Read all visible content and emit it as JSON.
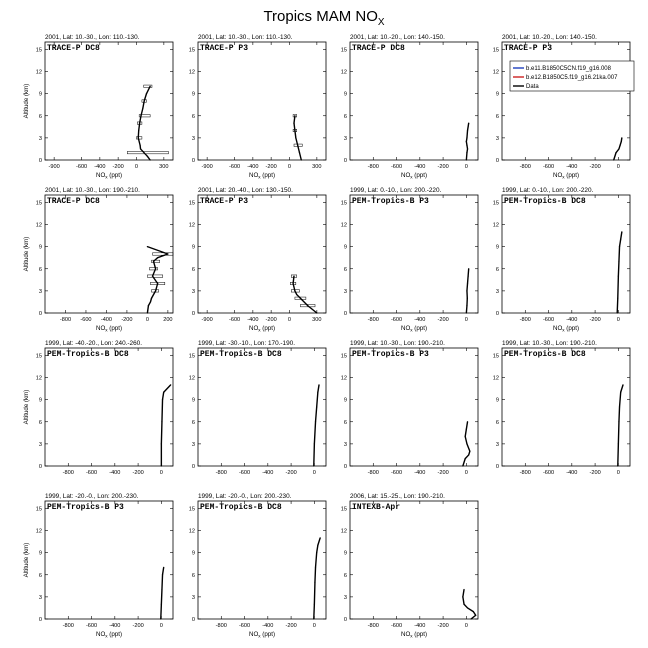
{
  "title": {
    "main": "Tropics MAM NO",
    "sub": "X"
  },
  "legend": [
    {
      "label": "b.e11.B1850C5CN.f19_g16.008",
      "color": "#1f3fbf"
    },
    {
      "label": "b.e12.B1850C5.f19_g16.21ka.007",
      "color": "#cc2222"
    },
    {
      "label": "Data",
      "color": "#000000"
    }
  ],
  "colors": {
    "data_line": "#000000",
    "background": "#ffffff"
  },
  "chart_data": [
    {
      "type": "line",
      "subtitle": "2001, Lat: 10.-30., Lon: 110.-130.",
      "campaign": "TRACE-P DC8",
      "xlabel": "NO_x (ppt)",
      "ylabel": "Altitude (km)",
      "xlim": [
        -1000,
        400
      ],
      "ylim": [
        0,
        16
      ],
      "xticks": [
        -900,
        -600,
        -400,
        -200,
        0,
        300
      ],
      "yticks": [
        0,
        3,
        6,
        9,
        12,
        15
      ],
      "series": [
        {
          "name": "Data",
          "x": [
            150,
            110,
            85,
            70,
            50,
            35,
            25,
            20,
            40,
            45,
            120,
            150
          ],
          "y": [
            10,
            9,
            8,
            7,
            6,
            5,
            4,
            3,
            2,
            1.5,
            0.5,
            0
          ]
        }
      ],
      "error_bars": [
        {
          "y": 10,
          "lo": 80,
          "hi": 170
        },
        {
          "y": 8,
          "lo": 60,
          "hi": 110
        },
        {
          "y": 6,
          "lo": 30,
          "hi": 150
        },
        {
          "y": 5,
          "lo": 10,
          "hi": 60
        },
        {
          "y": 3,
          "lo": 0,
          "hi": 60
        },
        {
          "y": 1,
          "lo": -100,
          "hi": 350
        }
      ]
    },
    {
      "type": "line",
      "subtitle": "2001, Lat: 10.-30., Lon: 110.-130.",
      "campaign": "TRACE-P P3",
      "xlabel": "NO_x (ppt)",
      "ylabel": "",
      "xlim": [
        -1000,
        400
      ],
      "ylim": [
        0,
        16
      ],
      "xticks": [
        -900,
        -600,
        -400,
        -200,
        0,
        300
      ],
      "yticks": [
        0,
        3,
        6,
        9,
        12,
        15
      ],
      "series": [
        {
          "name": "Data",
          "x": [
            60,
            50,
            60,
            70,
            90,
            110,
            130
          ],
          "y": [
            6,
            5,
            4,
            3,
            2,
            1,
            0
          ]
        }
      ],
      "error_bars": [
        {
          "y": 6,
          "lo": 40,
          "hi": 80
        },
        {
          "y": 4,
          "lo": 40,
          "hi": 80
        },
        {
          "y": 2,
          "lo": 50,
          "hi": 140
        }
      ]
    },
    {
      "type": "line",
      "subtitle": "2001, Lat: 10.-20., Lon: 140.-150.",
      "campaign": "TRACE-P DC8",
      "xlabel": "NO_x (ppt)",
      "ylabel": "",
      "xlim": [
        -1000,
        100
      ],
      "ylim": [
        0,
        16
      ],
      "xticks": [
        -800,
        -600,
        -400,
        -200,
        0
      ],
      "yticks": [
        0,
        3,
        6,
        9,
        12,
        15
      ],
      "series": [
        {
          "name": "Data",
          "x": [
            20,
            15,
            10,
            5,
            0,
            5,
            10,
            5,
            0
          ],
          "y": [
            5,
            4.5,
            4,
            3,
            2.5,
            2,
            1.5,
            1,
            0
          ]
        }
      ],
      "error_bars": []
    },
    {
      "type": "line",
      "subtitle": "2001, Lat: 10.-20., Lon: 140.-150.",
      "campaign": "TRACE-P P3",
      "xlabel": "NO_x (ppt)",
      "ylabel": "",
      "xlim": [
        -1000,
        100
      ],
      "ylim": [
        0,
        16
      ],
      "xticks": [
        -800,
        -600,
        -400,
        -200,
        0
      ],
      "yticks": [
        0,
        3,
        6,
        9,
        12,
        15
      ],
      "series": [
        {
          "name": "Data",
          "x": [
            30,
            25,
            15,
            5,
            -20,
            -40
          ],
          "y": [
            3,
            2.5,
            2,
            1.5,
            1,
            0
          ]
        }
      ],
      "error_bars": []
    },
    {
      "type": "line",
      "subtitle": "2001, Lat: 10.-30., Lon: 190.-210.",
      "campaign": "TRACE-P DC8",
      "xlabel": "NO_x (ppt)",
      "ylabel": "Altitude (km)",
      "xlim": [
        -1000,
        250
      ],
      "ylim": [
        0,
        16
      ],
      "xticks": [
        -800,
        -600,
        -400,
        -200,
        0,
        200
      ],
      "yticks": [
        0,
        3,
        6,
        9,
        12,
        15
      ],
      "series": [
        {
          "name": "Data",
          "x": [
            0,
            200,
            100,
            60,
            80,
            50,
            100,
            80,
            40,
            30,
            10,
            0
          ],
          "y": [
            9,
            8,
            7.5,
            7,
            6,
            5,
            4,
            3,
            2,
            1.5,
            1,
            0
          ]
        }
      ],
      "error_bars": [
        {
          "y": 8,
          "lo": 50,
          "hi": 250
        },
        {
          "y": 7,
          "lo": 40,
          "hi": 120
        },
        {
          "y": 6,
          "lo": 20,
          "hi": 100
        },
        {
          "y": 5,
          "lo": 0,
          "hi": 150
        },
        {
          "y": 4,
          "lo": 30,
          "hi": 170
        },
        {
          "y": 3,
          "lo": 40,
          "hi": 110
        }
      ]
    },
    {
      "type": "line",
      "subtitle": "2001, Lat: 20.-40., Lon: 130.-150.",
      "campaign": "TRACE-P P3",
      "xlabel": "NO_x (ppt)",
      "ylabel": "",
      "xlim": [
        -1000,
        400
      ],
      "ylim": [
        0,
        16
      ],
      "xticks": [
        -900,
        -600,
        -400,
        -200,
        0,
        300
      ],
      "yticks": [
        0,
        3,
        6,
        9,
        12,
        15
      ],
      "series": [
        {
          "name": "Data",
          "x": [
            50,
            40,
            60,
            80,
            120,
            200,
            300
          ],
          "y": [
            5,
            4,
            3,
            2.5,
            2,
            1,
            0
          ]
        }
      ],
      "error_bars": [
        {
          "y": 5,
          "lo": 20,
          "hi": 80
        },
        {
          "y": 4,
          "lo": 10,
          "hi": 70
        },
        {
          "y": 3,
          "lo": 20,
          "hi": 110
        },
        {
          "y": 2,
          "lo": 60,
          "hi": 180
        },
        {
          "y": 1,
          "lo": 120,
          "hi": 280
        }
      ]
    },
    {
      "type": "line",
      "subtitle": "1999, Lat: 0.-10., Lon: 200.-220.",
      "campaign": "PEM-Tropics-B P3",
      "xlabel": "NO_x (ppt)",
      "ylabel": "",
      "xlim": [
        -1000,
        100
      ],
      "ylim": [
        0,
        16
      ],
      "xticks": [
        -800,
        -600,
        -400,
        -200,
        0
      ],
      "yticks": [
        0,
        3,
        6,
        9,
        12,
        15
      ],
      "series": [
        {
          "name": "Data",
          "x": [
            20,
            15,
            10,
            5,
            8,
            5,
            0
          ],
          "y": [
            6,
            5,
            4,
            3,
            2,
            1,
            0
          ]
        }
      ],
      "error_bars": []
    },
    {
      "type": "line",
      "subtitle": "1999, Lat: 0.-10., Lon: 200.-220.",
      "campaign": "PEM-Tropics-B DC8",
      "xlabel": "NO_x (ppt)",
      "ylabel": "",
      "xlim": [
        -1000,
        100
      ],
      "ylim": [
        0,
        16
      ],
      "xticks": [
        -800,
        -600,
        -400,
        -200,
        0
      ],
      "yticks": [
        0,
        3,
        6,
        9,
        12,
        15
      ],
      "series": [
        {
          "name": "Data",
          "x": [
            30,
            20,
            10,
            5,
            0,
            -5,
            -10
          ],
          "y": [
            11,
            10,
            9,
            7,
            5,
            2,
            0
          ]
        }
      ],
      "error_bars": []
    },
    {
      "type": "line",
      "subtitle": "1999, Lat: -40.-20., Lon: 240.-260.",
      "campaign": "PEM-Tropics-B DC8",
      "xlabel": "",
      "ylabel": "Altitude (km)",
      "xlim": [
        -1000,
        100
      ],
      "ylim": [
        0,
        16
      ],
      "xticks": [
        -800,
        -600,
        -400,
        -200,
        0
      ],
      "yticks": [
        0,
        3,
        6,
        9,
        12,
        15
      ],
      "series": [
        {
          "name": "Data",
          "x": [
            80,
            20,
            10,
            5,
            0,
            0
          ],
          "y": [
            11,
            10,
            9,
            6,
            3,
            0
          ]
        }
      ],
      "error_bars": []
    },
    {
      "type": "line",
      "subtitle": "1999, Lat: -30.-10., Lon: 170.-190.",
      "campaign": "PEM-Tropics-B DC8",
      "xlabel": "",
      "ylabel": "",
      "xlim": [
        -1000,
        100
      ],
      "ylim": [
        0,
        16
      ],
      "xticks": [
        -800,
        -600,
        -400,
        -200,
        0
      ],
      "yticks": [
        0,
        3,
        6,
        9,
        12,
        15
      ],
      "series": [
        {
          "name": "Data",
          "x": [
            40,
            30,
            20,
            10,
            0,
            -5
          ],
          "y": [
            11,
            10,
            8,
            6,
            3,
            0
          ]
        }
      ],
      "error_bars": []
    },
    {
      "type": "line",
      "subtitle": "1999, Lat: 10.-30., Lon: 190.-210.",
      "campaign": "PEM-Tropics-B P3",
      "xlabel": "",
      "ylabel": "",
      "xlim": [
        -1000,
        100
      ],
      "ylim": [
        0,
        16
      ],
      "xticks": [
        -800,
        -600,
        -400,
        -200,
        0
      ],
      "yticks": [
        0,
        3,
        6,
        9,
        12,
        15
      ],
      "series": [
        {
          "name": "Data",
          "x": [
            10,
            0,
            -10,
            5,
            30,
            20,
            -10,
            -30
          ],
          "y": [
            6,
            5,
            4,
            3,
            2,
            1.5,
            1,
            0
          ]
        }
      ],
      "error_bars": []
    },
    {
      "type": "line",
      "subtitle": "1999, Lat: 10.-30., Lon: 190.-210.",
      "campaign": "PEM-Tropics-B DC8",
      "xlabel": "",
      "ylabel": "",
      "xlim": [
        -1000,
        100
      ],
      "ylim": [
        0,
        16
      ],
      "xticks": [
        -800,
        -600,
        -400,
        -200,
        0
      ],
      "yticks": [
        0,
        3,
        6,
        9,
        12,
        15
      ],
      "series": [
        {
          "name": "Data",
          "x": [
            40,
            20,
            10,
            5,
            0,
            -5
          ],
          "y": [
            11,
            10,
            8,
            6,
            3,
            0
          ]
        }
      ],
      "error_bars": []
    },
    {
      "type": "line",
      "subtitle": "1999, Lat: -20.-0., Lon: 200.-230.",
      "campaign": "PEM-Tropics-B P3",
      "xlabel": "NO_x (ppt)",
      "ylabel": "Altitude (km)",
      "xlim": [
        -1000,
        100
      ],
      "ylim": [
        0,
        16
      ],
      "xticks": [
        -800,
        -600,
        -400,
        -200,
        0
      ],
      "yticks": [
        0,
        3,
        6,
        9,
        12,
        15
      ],
      "series": [
        {
          "name": "Data",
          "x": [
            20,
            10,
            5,
            0,
            -5
          ],
          "y": [
            7,
            6,
            4,
            2,
            0
          ]
        }
      ],
      "error_bars": []
    },
    {
      "type": "line",
      "subtitle": "1999, Lat: -20.-0., Lon: 200.-230.",
      "campaign": "PEM-Tropics-B DC8",
      "xlabel": "NO_x (ppt)",
      "ylabel": "",
      "xlim": [
        -1000,
        100
      ],
      "ylim": [
        0,
        16
      ],
      "xticks": [
        -800,
        -600,
        -400,
        -200,
        0
      ],
      "yticks": [
        0,
        3,
        6,
        9,
        12,
        15
      ],
      "series": [
        {
          "name": "Data",
          "x": [
            50,
            30,
            20,
            10,
            5,
            0,
            -5
          ],
          "y": [
            11,
            10,
            9,
            7,
            5,
            2,
            0
          ]
        }
      ],
      "error_bars": []
    },
    {
      "type": "line",
      "subtitle": "2006, Lat: 15.-25., Lon: 190.-210.",
      "campaign": "INTEXB-Apr",
      "xlabel": "NO_x (ppt)",
      "ylabel": "",
      "xlim": [
        -1000,
        100
      ],
      "ylim": [
        0,
        16
      ],
      "xticks": [
        -800,
        -600,
        -400,
        -200,
        0
      ],
      "yticks": [
        0,
        3,
        6,
        9,
        12,
        15
      ],
      "series": [
        {
          "name": "Data",
          "x": [
            -20,
            -30,
            -20,
            10,
            60,
            80,
            40
          ],
          "y": [
            4,
            3,
            2,
            1.5,
            1,
            0.5,
            0
          ]
        }
      ],
      "error_bars": []
    }
  ]
}
